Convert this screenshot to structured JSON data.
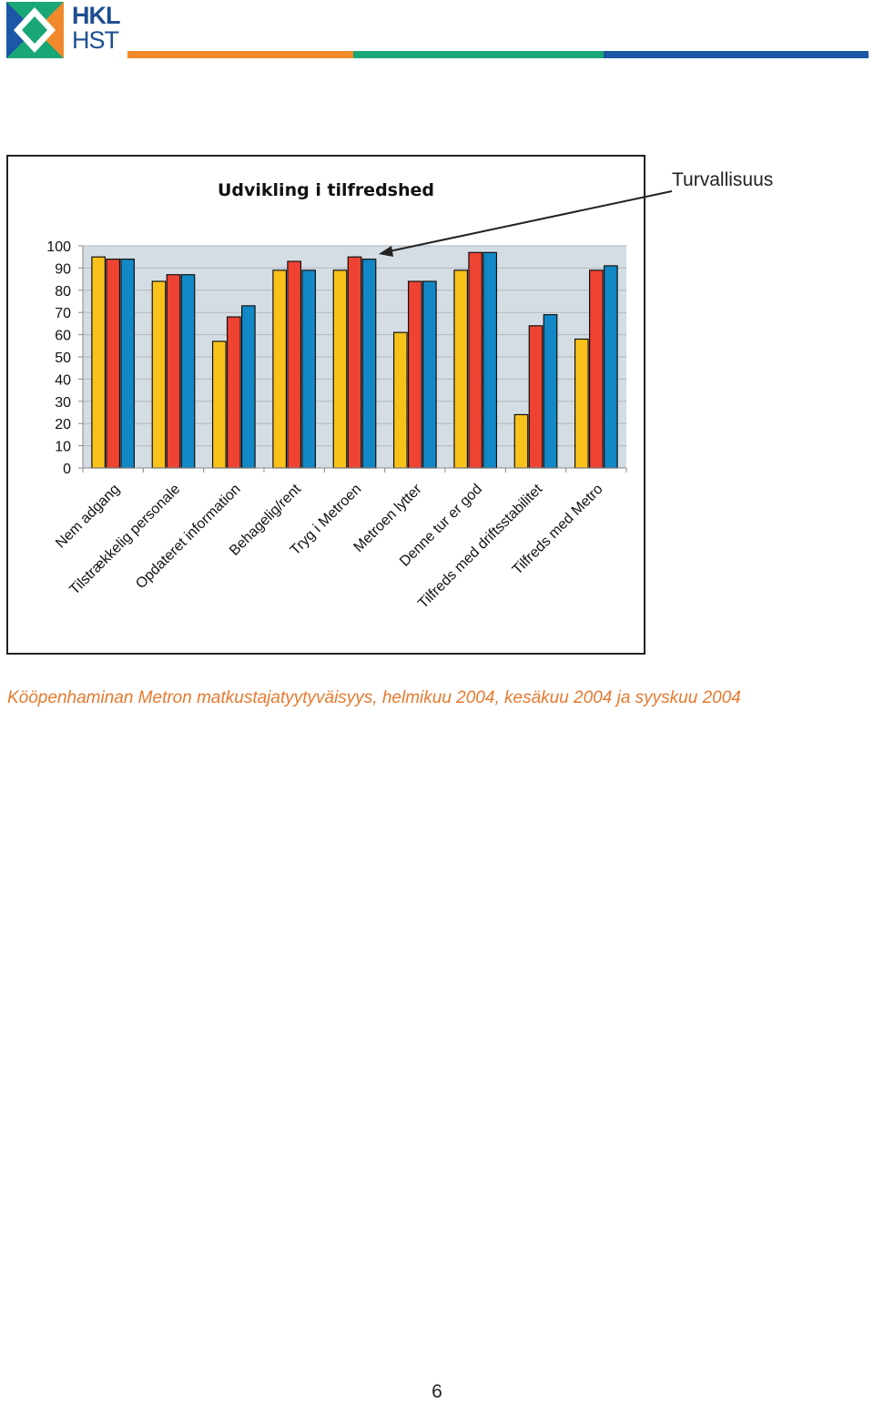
{
  "header": {
    "logo_line1": "HKL",
    "logo_line2": "HST",
    "colors": {
      "orange": "#f08a2c",
      "green": "#1aa776",
      "blue": "#1b57a6"
    }
  },
  "annotation": {
    "label": "Turvallisuus"
  },
  "caption": "Kööpenhaminan Metron matkustajatyytyväisyys, helmikuu 2004, kesäkuu 2004 ja syyskuu 2004",
  "page_number": "6",
  "chart_data": {
    "type": "bar",
    "title": "Udvikling i tilfredshed",
    "xlabel": "",
    "ylabel": "",
    "ylim": [
      0,
      100
    ],
    "yticks": [
      0,
      10,
      20,
      30,
      40,
      50,
      60,
      70,
      80,
      90,
      100
    ],
    "grid": true,
    "legend": "none",
    "categories": [
      "Nem adgang",
      "Tilstrækkelig personale",
      "Opdateret information",
      "Behagelig/rent",
      "Tryg i Metroen",
      "Metroen lytter",
      "Denne tur er god",
      "Tilfreds med driftsstabilitet",
      "Tilfreds med Metro"
    ],
    "series": [
      {
        "color": "#f9c21b",
        "values": [
          95,
          84,
          57,
          89,
          89,
          61,
          89,
          24,
          58
        ]
      },
      {
        "color": "#ee4333",
        "values": [
          94,
          87,
          68,
          93,
          95,
          84,
          97,
          64,
          89
        ]
      },
      {
        "color": "#1388c6",
        "values": [
          94,
          87,
          73,
          89,
          94,
          84,
          97,
          69,
          91
        ]
      }
    ],
    "highlighted_category": "Tryg i Metroen"
  }
}
